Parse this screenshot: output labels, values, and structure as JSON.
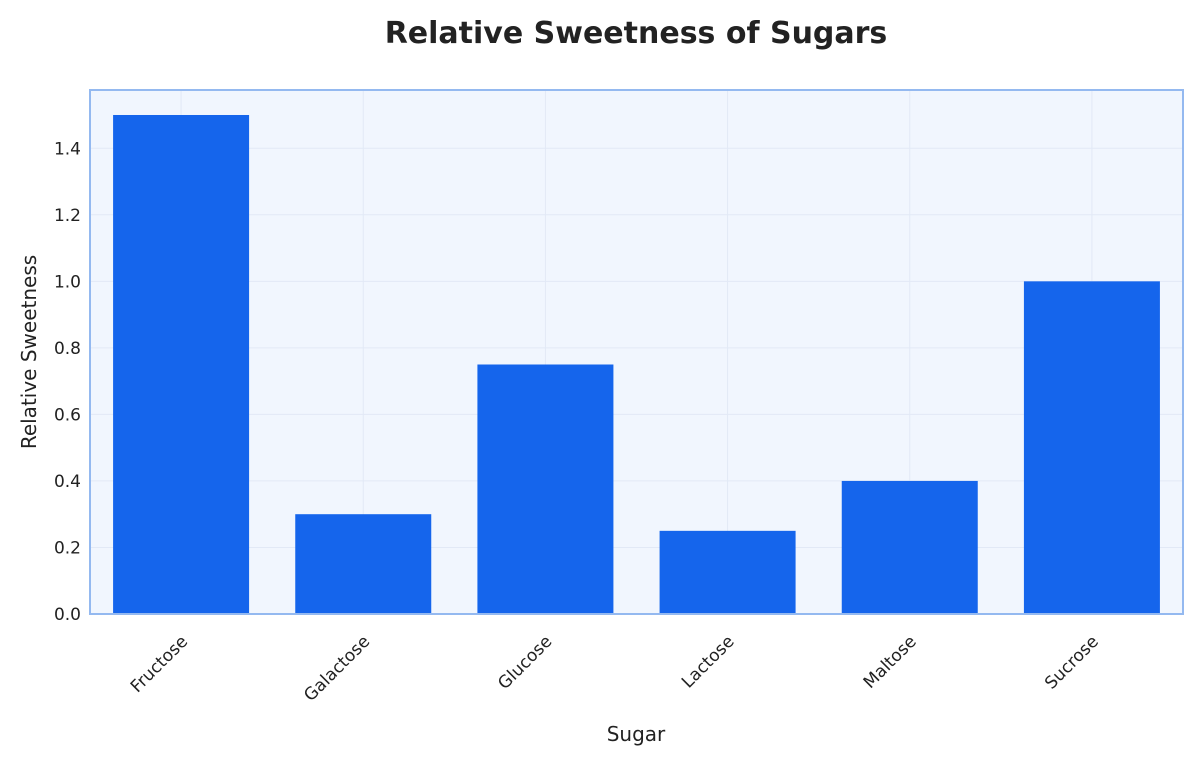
{
  "chart_data": {
    "type": "bar",
    "title": "Relative Sweetness of Sugars",
    "xlabel": "Sugar",
    "ylabel": "Relative Sweetness",
    "categories": [
      "Fructose",
      "Galactose",
      "Glucose",
      "Lactose",
      "Maltose",
      "Sucrose"
    ],
    "values": [
      1.5,
      0.3,
      0.75,
      0.25,
      0.4,
      1.0
    ],
    "ylim": [
      0,
      1.5
    ],
    "yticks": [
      "0.0",
      "0.2",
      "0.4",
      "0.6",
      "0.8",
      "1.0",
      "1.2",
      "1.4"
    ],
    "grid": true,
    "legend": "none",
    "colors": {
      "bar": "#1565EC",
      "plot_background": "#F1F6FE",
      "plot_border": "#94B9F0",
      "grid": "#E2E9F6"
    }
  }
}
